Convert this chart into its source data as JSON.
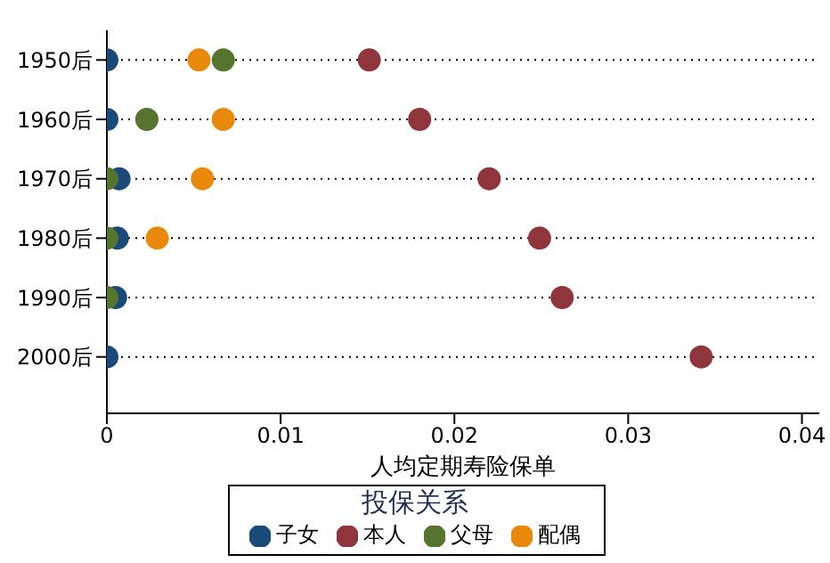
{
  "chart_data": {
    "type": "scatter",
    "orientation": "horizontal",
    "categories": [
      "1950后",
      "1960后",
      "1970后",
      "1980后",
      "1990后",
      "2000后"
    ],
    "xlabel": "人均定期寿险保单",
    "legend_title": "投保关系",
    "legend": "bottom",
    "grid": "y",
    "marker": "circle",
    "xlim": [
      0,
      0.041
    ],
    "xticks": [
      0,
      0.01,
      0.02,
      0.03,
      0.04
    ],
    "series": [
      {
        "name": "子女",
        "color": "#1a4a7a",
        "values": [
          0,
          0,
          0.0007,
          0.0006,
          0.0005,
          0
        ]
      },
      {
        "name": "本人",
        "color": "#90353b",
        "values": [
          0.0151,
          0.018,
          0.022,
          0.0249,
          0.0262,
          0.0342
        ]
      },
      {
        "name": "父母",
        "color": "#55752f",
        "values": [
          0.0067,
          0.0023,
          0,
          0,
          0,
          null
        ]
      },
      {
        "name": "配偶",
        "color": "#e8890c",
        "values": [
          0.0053,
          0.0067,
          0.0055,
          0.0029,
          null,
          null
        ]
      }
    ]
  }
}
